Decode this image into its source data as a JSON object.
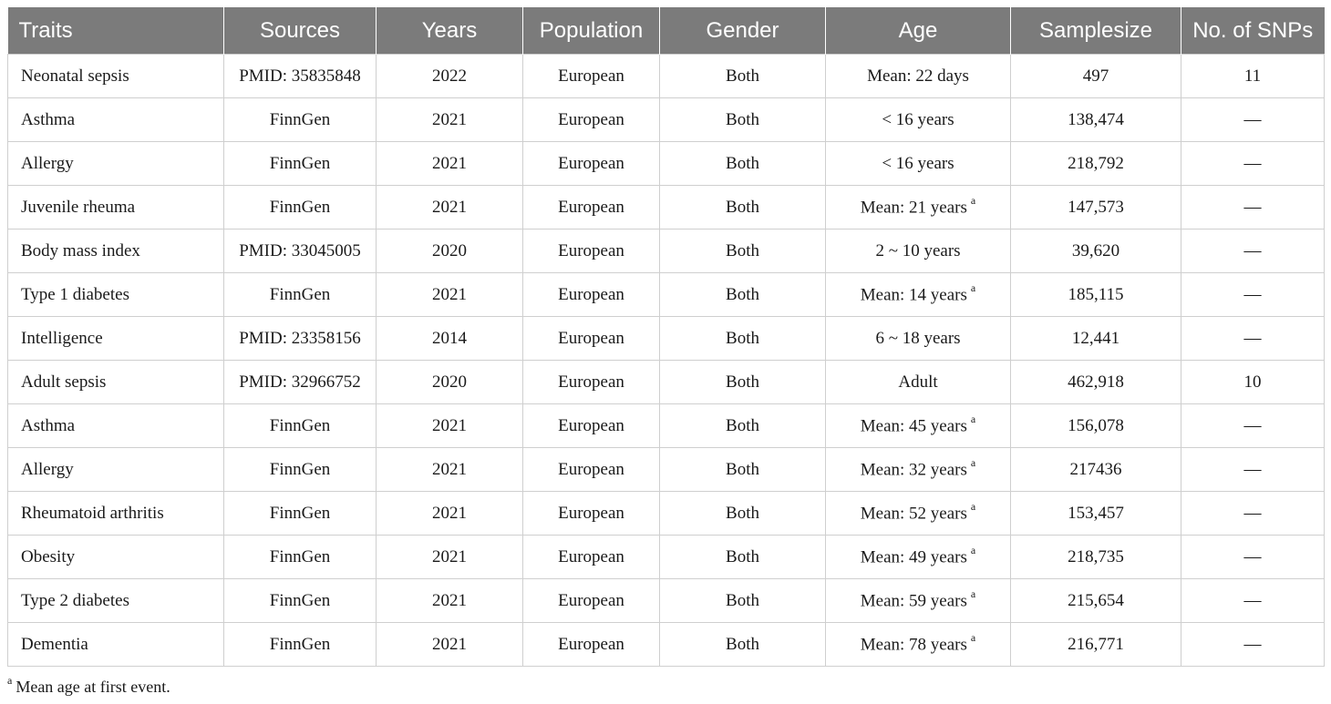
{
  "table": {
    "headers": [
      "Traits",
      "Sources",
      "Years",
      "Population",
      "Gender",
      "Age",
      "Samplesize",
      "No. of SNPs"
    ],
    "rows": [
      {
        "trait": "Neonatal sepsis",
        "source": "PMID: 35835848",
        "year": "2022",
        "population": "European",
        "gender": "Both",
        "age": "Mean: 22 days",
        "age_note": "",
        "samplesize": "497",
        "snps": "11"
      },
      {
        "trait": "Asthma",
        "source": "FinnGen",
        "year": "2021",
        "population": "European",
        "gender": "Both",
        "age": "< 16 years",
        "age_note": "",
        "samplesize": "138,474",
        "snps": "—"
      },
      {
        "trait": "Allergy",
        "source": "FinnGen",
        "year": "2021",
        "population": "European",
        "gender": "Both",
        "age": "< 16 years",
        "age_note": "",
        "samplesize": "218,792",
        "snps": "—"
      },
      {
        "trait": "Juvenile rheuma",
        "source": "FinnGen",
        "year": "2021",
        "population": "European",
        "gender": "Both",
        "age": "Mean: 21 years",
        "age_note": "a",
        "samplesize": "147,573",
        "snps": "—"
      },
      {
        "trait": "Body mass index",
        "source": "PMID: 33045005",
        "year": "2020",
        "population": "European",
        "gender": "Both",
        "age": "2 ~ 10 years",
        "age_note": "",
        "samplesize": "39,620",
        "snps": "—"
      },
      {
        "trait": "Type 1 diabetes",
        "source": "FinnGen",
        "year": "2021",
        "population": "European",
        "gender": "Both",
        "age": "Mean: 14 years",
        "age_note": "a",
        "samplesize": "185,115",
        "snps": "—"
      },
      {
        "trait": "Intelligence",
        "source": "PMID: 23358156",
        "year": "2014",
        "population": "European",
        "gender": "Both",
        "age": "6 ~ 18 years",
        "age_note": "",
        "samplesize": "12,441",
        "snps": "—"
      },
      {
        "trait": "Adult sepsis",
        "source": "PMID: 32966752",
        "year": "2020",
        "population": "European",
        "gender": "Both",
        "age": "Adult",
        "age_note": "",
        "samplesize": "462,918",
        "snps": "10"
      },
      {
        "trait": "Asthma",
        "source": "FinnGen",
        "year": "2021",
        "population": "European",
        "gender": "Both",
        "age": "Mean: 45 years",
        "age_note": "a",
        "samplesize": "156,078",
        "snps": "—"
      },
      {
        "trait": "Allergy",
        "source": "FinnGen",
        "year": "2021",
        "population": "European",
        "gender": "Both",
        "age": "Mean: 32 years",
        "age_note": "a",
        "samplesize": "217436",
        "snps": "—"
      },
      {
        "trait": "Rheumatoid arthritis",
        "source": "FinnGen",
        "year": "2021",
        "population": "European",
        "gender": "Both",
        "age": "Mean: 52 years",
        "age_note": "a",
        "samplesize": "153,457",
        "snps": "—"
      },
      {
        "trait": "Obesity",
        "source": "FinnGen",
        "year": "2021",
        "population": "European",
        "gender": "Both",
        "age": "Mean: 49 years",
        "age_note": "a",
        "samplesize": "218,735",
        "snps": "—"
      },
      {
        "trait": "Type 2 diabetes",
        "source": "FinnGen",
        "year": "2021",
        "population": "European",
        "gender": "Both",
        "age": "Mean: 59 years",
        "age_note": "a",
        "samplesize": "215,654",
        "snps": "—"
      },
      {
        "trait": "Dementia",
        "source": "FinnGen",
        "year": "2021",
        "population": "European",
        "gender": "Both",
        "age": "Mean: 78 years",
        "age_note": "a",
        "samplesize": "216,771",
        "snps": "—"
      }
    ]
  },
  "footnote": {
    "marker": "a",
    "text": "Mean age at first event."
  },
  "colors": {
    "header_bg": "#7b7b7b",
    "header_text": "#ffffff",
    "grid": "#cfcfcf"
  }
}
